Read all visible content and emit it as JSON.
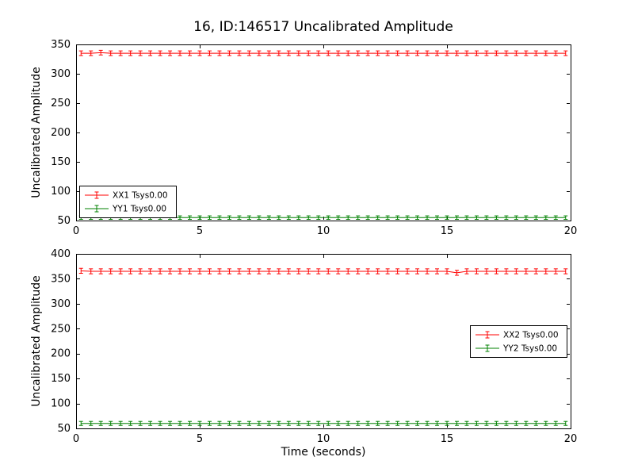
{
  "figure": {
    "background": "#ffffff",
    "axes_color": "#000000"
  },
  "chart_data": [
    {
      "type": "line",
      "style": "errorbar",
      "title": "16, ID:146517 Uncalibrated Amplitude",
      "xlabel": "",
      "ylabel": "Uncalibrated Amplitude",
      "xlim": [
        0,
        20
      ],
      "ylim": [
        50,
        350
      ],
      "xticks": [
        0,
        5,
        10,
        15,
        20
      ],
      "yticks": [
        50,
        100,
        150,
        200,
        250,
        300,
        350
      ],
      "grid": false,
      "legend": {
        "position": "lower-left",
        "entries": [
          {
            "label": "XX1 Tsys0.00",
            "color": "#ff0000"
          },
          {
            "label": "YY1 Tsys0.00",
            "color": "#008000"
          }
        ]
      },
      "x": [
        0.2,
        0.6,
        1.0,
        1.4,
        1.8,
        2.2,
        2.6,
        3.0,
        3.4,
        3.8,
        4.2,
        4.6,
        5.0,
        5.4,
        5.8,
        6.2,
        6.6,
        7.0,
        7.4,
        7.8,
        8.2,
        8.6,
        9.0,
        9.4,
        9.8,
        10.2,
        10.6,
        11.0,
        11.4,
        11.8,
        12.2,
        12.6,
        13.0,
        13.4,
        13.8,
        14.2,
        14.6,
        15.0,
        15.4,
        15.8,
        16.2,
        16.6,
        17.0,
        17.4,
        17.8,
        18.2,
        18.6,
        19.0,
        19.4,
        19.8
      ],
      "series": [
        {
          "name": "XX1 Tsys0.00",
          "color": "#ff0000",
          "yerr": 4,
          "y": [
            335,
            335,
            336,
            335,
            335,
            335,
            335,
            335,
            335,
            335,
            335,
            335,
            335,
            335,
            335,
            335,
            335,
            335,
            335,
            335,
            335,
            335,
            335,
            335,
            335,
            335,
            335,
            335,
            335,
            335,
            335,
            335,
            335,
            335,
            335,
            335,
            335,
            335,
            335,
            335,
            335,
            335,
            335,
            335,
            335,
            335,
            335,
            335,
            335,
            335
          ]
        },
        {
          "name": "YY1 Tsys0.00",
          "color": "#008000",
          "yerr": 3,
          "y": [
            55,
            55,
            55,
            55,
            55,
            55,
            55,
            55,
            55,
            55,
            55,
            55,
            55,
            55,
            55,
            55,
            55,
            55,
            55,
            55,
            55,
            55,
            55,
            55,
            55,
            55,
            55,
            55,
            55,
            55,
            55,
            55,
            55,
            55,
            55,
            55,
            55,
            55,
            55,
            55,
            55,
            55,
            55,
            55,
            55,
            55,
            55,
            55,
            55,
            55
          ]
        }
      ]
    },
    {
      "type": "line",
      "style": "errorbar",
      "title": "",
      "xlabel": "Time (seconds)",
      "ylabel": "Uncalibrated Amplitude",
      "xlim": [
        0,
        20
      ],
      "ylim": [
        50,
        400
      ],
      "xticks": [
        0,
        5,
        10,
        15,
        20
      ],
      "yticks": [
        50,
        100,
        150,
        200,
        250,
        300,
        350,
        400
      ],
      "grid": false,
      "legend": {
        "position": "center-right",
        "entries": [
          {
            "label": "XX2 Tsys0.00",
            "color": "#ff0000"
          },
          {
            "label": "YY2 Tsys0.00",
            "color": "#008000"
          }
        ]
      },
      "x": [
        0.2,
        0.6,
        1.0,
        1.4,
        1.8,
        2.2,
        2.6,
        3.0,
        3.4,
        3.8,
        4.2,
        4.6,
        5.0,
        5.4,
        5.8,
        6.2,
        6.6,
        7.0,
        7.4,
        7.8,
        8.2,
        8.6,
        9.0,
        9.4,
        9.8,
        10.2,
        10.6,
        11.0,
        11.4,
        11.8,
        12.2,
        12.6,
        13.0,
        13.4,
        13.8,
        14.2,
        14.6,
        15.0,
        15.4,
        15.8,
        16.2,
        16.6,
        17.0,
        17.4,
        17.8,
        18.2,
        18.6,
        19.0,
        19.4,
        19.8
      ],
      "series": [
        {
          "name": "XX2 Tsys0.00",
          "color": "#ff0000",
          "yerr": 5,
          "y": [
            366,
            365,
            365,
            365,
            365,
            365,
            365,
            365,
            365,
            365,
            365,
            365,
            365,
            365,
            365,
            365,
            365,
            365,
            365,
            365,
            365,
            365,
            365,
            365,
            365,
            365,
            365,
            365,
            365,
            365,
            365,
            365,
            365,
            365,
            365,
            365,
            365,
            365,
            362,
            365,
            365,
            365,
            365,
            365,
            365,
            365,
            365,
            365,
            365,
            365
          ]
        },
        {
          "name": "YY2 Tsys0.00",
          "color": "#008000",
          "yerr": 4,
          "y": [
            60,
            60,
            60,
            60,
            60,
            60,
            60,
            60,
            60,
            60,
            60,
            60,
            60,
            60,
            60,
            60,
            60,
            60,
            60,
            60,
            60,
            60,
            60,
            60,
            60,
            60,
            60,
            60,
            60,
            60,
            60,
            60,
            60,
            60,
            60,
            60,
            60,
            60,
            60,
            60,
            60,
            60,
            60,
            60,
            60,
            60,
            60,
            60,
            60,
            60
          ]
        }
      ]
    }
  ]
}
